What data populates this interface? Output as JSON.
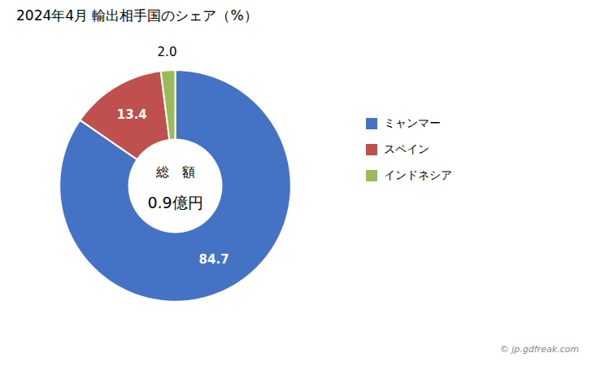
{
  "chart_data": {
    "type": "donut",
    "title": "2024年4月 輸出相手国のシェア（%）",
    "categories": [
      "ミャンマー",
      "スペイン",
      "インドネシア"
    ],
    "values": [
      84.7,
      13.4,
      2.0
    ],
    "value_labels": [
      "84.7",
      "13.4",
      "2.0"
    ],
    "colors": [
      "#4472C4",
      "#C0504D",
      "#9BBB59"
    ],
    "data_labels": true,
    "legend": "right",
    "center_text": [
      "総　額",
      "0.9億円"
    ],
    "caption": "© jp.gdfreak.com"
  }
}
